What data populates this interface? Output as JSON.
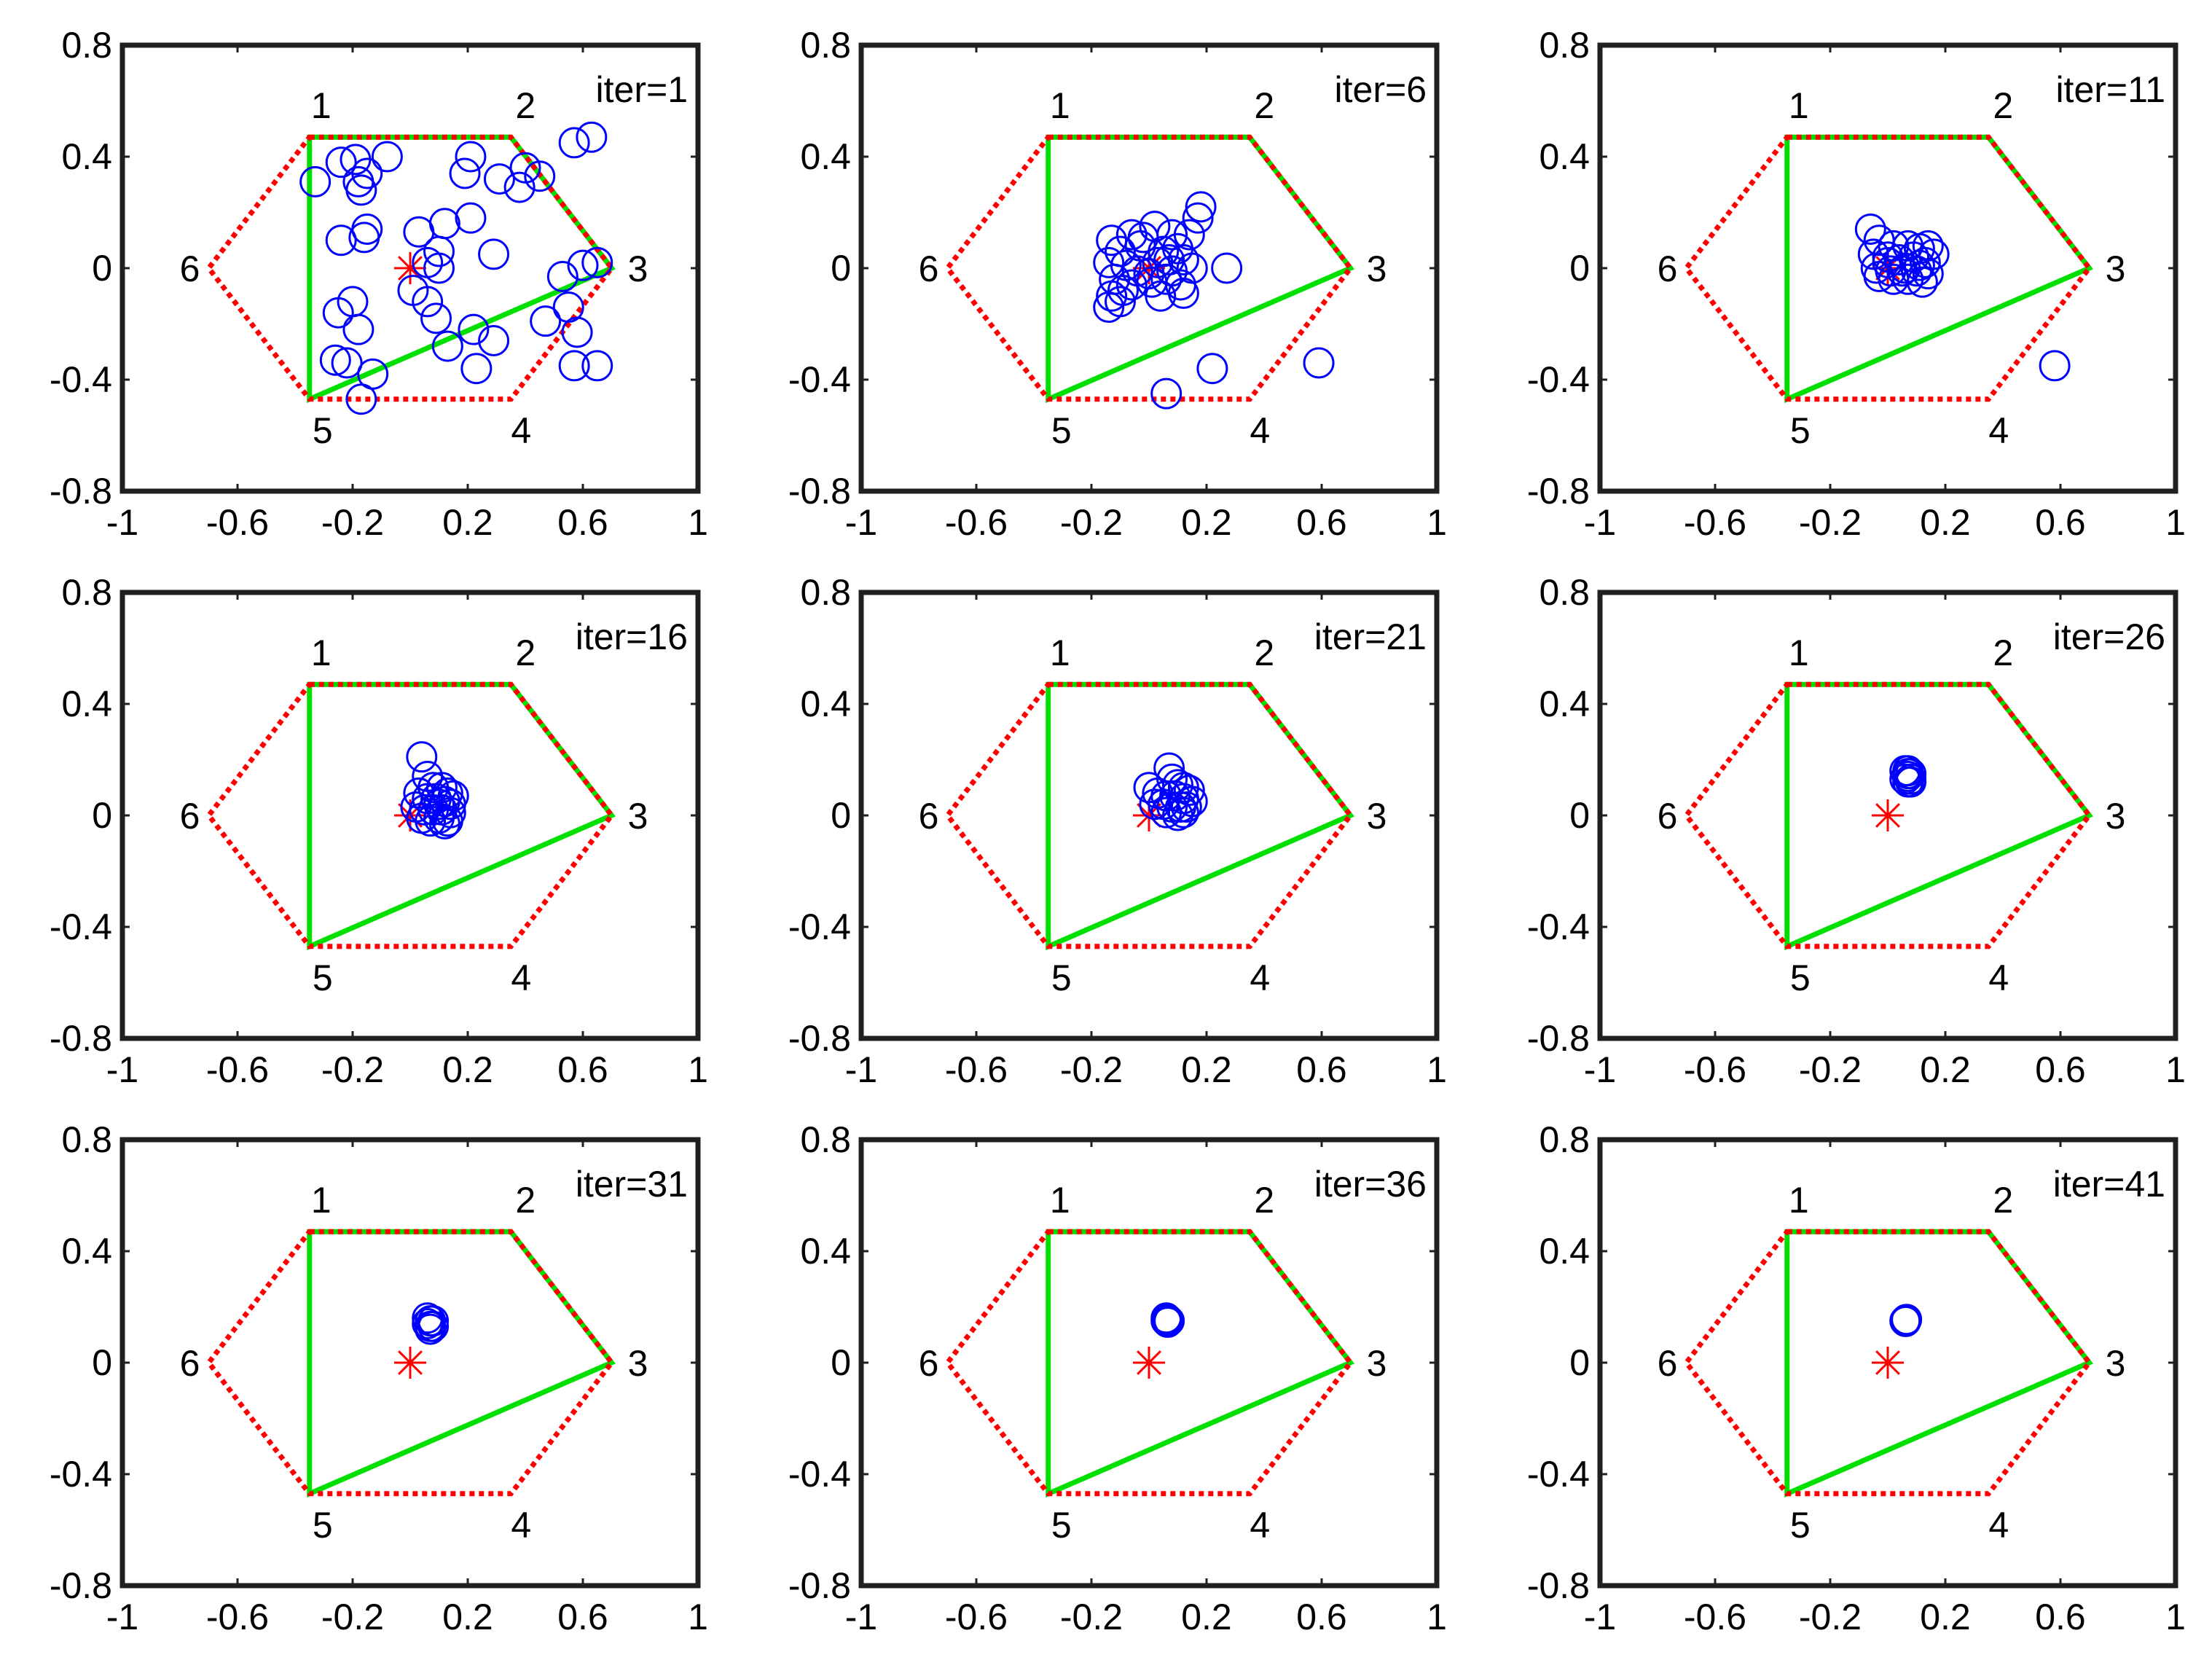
{
  "figure": {
    "colors": {
      "axes": "#202020",
      "hexagon": "#ff0000",
      "polygon": "#00e000",
      "particles": "#0000ff",
      "target": "#ff0000"
    }
  },
  "chart_data": [
    {
      "type": "scatter",
      "title": "iter=1",
      "xlim": [
        -1,
        1
      ],
      "ylim": [
        -0.8,
        0.8
      ],
      "xticks": [
        "-1",
        "-0.6",
        "-0.2",
        "0.2",
        "0.6",
        "1"
      ],
      "yticks": [
        "0.8",
        "0.4",
        "0",
        "-0.4",
        "-0.8"
      ],
      "vertices": [
        {
          "label": "1",
          "x": -0.35,
          "y": 0.47
        },
        {
          "label": "2",
          "x": 0.35,
          "y": 0.47
        },
        {
          "label": "3",
          "x": 0.7,
          "y": 0.0
        },
        {
          "label": "4",
          "x": 0.35,
          "y": -0.47
        },
        {
          "label": "5",
          "x": -0.35,
          "y": -0.47
        },
        {
          "label": "6",
          "x": -0.7,
          "y": 0.0
        }
      ],
      "polygon_vertices": [
        "1",
        "2",
        "3",
        "5"
      ],
      "target": {
        "x": 0.0,
        "y": 0.0
      },
      "particles": [
        [
          -0.33,
          0.31
        ],
        [
          -0.24,
          0.38
        ],
        [
          -0.19,
          0.39
        ],
        [
          -0.15,
          0.34
        ],
        [
          -0.18,
          0.31
        ],
        [
          -0.17,
          0.28
        ],
        [
          -0.08,
          0.4
        ],
        [
          0.21,
          0.4
        ],
        [
          0.57,
          0.45
        ],
        [
          0.63,
          0.47
        ],
        [
          0.4,
          0.36
        ],
        [
          0.45,
          0.33
        ],
        [
          0.38,
          0.29
        ],
        [
          0.19,
          0.34
        ],
        [
          0.31,
          0.32
        ],
        [
          -0.24,
          0.1
        ],
        [
          -0.15,
          0.14
        ],
        [
          -0.16,
          0.11
        ],
        [
          0.03,
          0.13
        ],
        [
          0.12,
          0.16
        ],
        [
          0.21,
          0.18
        ],
        [
          0.29,
          0.05
        ],
        [
          0.1,
          0.06
        ],
        [
          0.06,
          0.02
        ],
        [
          0.1,
          0.0
        ],
        [
          0.53,
          -0.03
        ],
        [
          0.6,
          0.01
        ],
        [
          0.65,
          0.02
        ],
        [
          0.01,
          -0.08
        ],
        [
          0.06,
          -0.12
        ],
        [
          0.09,
          -0.18
        ],
        [
          0.55,
          -0.14
        ],
        [
          -0.25,
          -0.16
        ],
        [
          -0.2,
          -0.12
        ],
        [
          -0.18,
          -0.22
        ],
        [
          0.22,
          -0.22
        ],
        [
          0.29,
          -0.26
        ],
        [
          0.58,
          -0.23
        ],
        [
          -0.26,
          -0.33
        ],
        [
          -0.22,
          -0.34
        ],
        [
          0.13,
          -0.28
        ],
        [
          0.23,
          -0.36
        ],
        [
          0.57,
          -0.35
        ],
        [
          0.65,
          -0.35
        ],
        [
          -0.13,
          -0.38
        ],
        [
          -0.17,
          -0.47
        ],
        [
          0.47,
          -0.19
        ]
      ]
    },
    {
      "type": "scatter",
      "title": "iter=6",
      "xlim": [
        -1,
        1
      ],
      "ylim": [
        -0.8,
        0.8
      ],
      "xticks": [
        "-1",
        "-0.6",
        "-0.2",
        "0.2",
        "0.6",
        "1"
      ],
      "yticks": [
        "0.8",
        "0.4",
        "0",
        "-0.4",
        "-0.8"
      ],
      "vertices": [
        {
          "label": "1",
          "x": -0.35,
          "y": 0.47
        },
        {
          "label": "2",
          "x": 0.35,
          "y": 0.47
        },
        {
          "label": "3",
          "x": 0.7,
          "y": 0.0
        },
        {
          "label": "4",
          "x": 0.35,
          "y": -0.47
        },
        {
          "label": "5",
          "x": -0.35,
          "y": -0.47
        },
        {
          "label": "6",
          "x": -0.7,
          "y": 0.0
        }
      ],
      "polygon_vertices": [
        "1",
        "2",
        "3",
        "5"
      ],
      "target": {
        "x": 0.0,
        "y": 0.0
      },
      "particles": [
        [
          -0.13,
          0.1
        ],
        [
          -0.06,
          0.12
        ],
        [
          0.02,
          0.15
        ],
        [
          0.08,
          0.12
        ],
        [
          0.14,
          0.12
        ],
        [
          0.17,
          0.18
        ],
        [
          0.18,
          0.22
        ],
        [
          -0.1,
          0.06
        ],
        [
          -0.03,
          0.08
        ],
        [
          0.05,
          0.06
        ],
        [
          0.1,
          0.07
        ],
        [
          -0.14,
          0.02
        ],
        [
          -0.08,
          0.01
        ],
        [
          -0.04,
          -0.01
        ],
        [
          0.03,
          0.02
        ],
        [
          0.08,
          -0.01
        ],
        [
          0.12,
          0.03
        ],
        [
          -0.12,
          -0.04
        ],
        [
          -0.06,
          -0.06
        ],
        [
          0.01,
          -0.05
        ],
        [
          0.06,
          -0.04
        ],
        [
          0.11,
          -0.06
        ],
        [
          -0.13,
          -0.1
        ],
        [
          -0.09,
          -0.08
        ],
        [
          0.04,
          -0.1
        ],
        [
          0.12,
          -0.09
        ],
        [
          -0.14,
          -0.14
        ],
        [
          -0.1,
          -0.12
        ],
        [
          0.0,
          -0.02
        ],
        [
          0.07,
          0.03
        ],
        [
          -0.02,
          0.11
        ],
        [
          0.15,
          0.0
        ],
        [
          0.27,
          0.0
        ],
        [
          0.22,
          -0.36
        ],
        [
          0.06,
          -0.45
        ],
        [
          0.59,
          -0.34
        ]
      ]
    },
    {
      "type": "scatter",
      "title": "iter=11",
      "xlim": [
        -1,
        1
      ],
      "ylim": [
        -0.8,
        0.8
      ],
      "xticks": [
        "-1",
        "-0.6",
        "-0.2",
        "0.2",
        "0.6",
        "1"
      ],
      "yticks": [
        "0.8",
        "0.4",
        "0",
        "-0.4",
        "-0.8"
      ],
      "vertices": [
        {
          "label": "1",
          "x": -0.35,
          "y": 0.47
        },
        {
          "label": "2",
          "x": 0.35,
          "y": 0.47
        },
        {
          "label": "3",
          "x": 0.7,
          "y": 0.0
        },
        {
          "label": "4",
          "x": 0.35,
          "y": -0.47
        },
        {
          "label": "5",
          "x": -0.35,
          "y": -0.47
        },
        {
          "label": "6",
          "x": -0.7,
          "y": 0.0
        }
      ],
      "polygon_vertices": [
        "1",
        "2",
        "3",
        "5"
      ],
      "target": {
        "x": 0.0,
        "y": 0.0
      },
      "particles": [
        [
          -0.06,
          0.14
        ],
        [
          -0.03,
          0.1
        ],
        [
          0.02,
          0.08
        ],
        [
          0.07,
          0.08
        ],
        [
          0.11,
          0.07
        ],
        [
          0.14,
          0.08
        ],
        [
          0.16,
          0.05
        ],
        [
          -0.05,
          0.05
        ],
        [
          0.0,
          0.04
        ],
        [
          0.04,
          0.03
        ],
        [
          0.09,
          0.04
        ],
        [
          0.13,
          0.02
        ],
        [
          -0.04,
          0.0
        ],
        [
          0.01,
          -0.01
        ],
        [
          0.05,
          -0.01
        ],
        [
          0.1,
          -0.01
        ],
        [
          0.14,
          -0.02
        ],
        [
          -0.03,
          -0.03
        ],
        [
          0.02,
          -0.04
        ],
        [
          0.07,
          -0.04
        ],
        [
          0.12,
          -0.05
        ],
        [
          0.0,
          0.02
        ],
        [
          0.06,
          0.0
        ],
        [
          0.11,
          0.01
        ],
        [
          0.58,
          -0.35
        ]
      ]
    },
    {
      "type": "scatter",
      "title": "iter=16",
      "xlim": [
        -1,
        1
      ],
      "ylim": [
        -0.8,
        0.8
      ],
      "xticks": [
        "-1",
        "-0.6",
        "-0.2",
        "0.2",
        "0.6",
        "1"
      ],
      "yticks": [
        "0.8",
        "0.4",
        "0",
        "-0.4",
        "-0.8"
      ],
      "vertices": [
        {
          "label": "1",
          "x": -0.35,
          "y": 0.47
        },
        {
          "label": "2",
          "x": 0.35,
          "y": 0.47
        },
        {
          "label": "3",
          "x": 0.7,
          "y": 0.0
        },
        {
          "label": "4",
          "x": 0.35,
          "y": -0.47
        },
        {
          "label": "5",
          "x": -0.35,
          "y": -0.47
        },
        {
          "label": "6",
          "x": -0.7,
          "y": 0.0
        }
      ],
      "polygon_vertices": [
        "1",
        "2",
        "3",
        "5"
      ],
      "target": {
        "x": 0.0,
        "y": 0.0
      },
      "particles": [
        [
          0.04,
          0.21
        ],
        [
          0.06,
          0.14
        ],
        [
          0.08,
          0.1
        ],
        [
          0.11,
          0.1
        ],
        [
          0.13,
          0.08
        ],
        [
          0.15,
          0.07
        ],
        [
          0.03,
          0.08
        ],
        [
          0.06,
          0.06
        ],
        [
          0.09,
          0.06
        ],
        [
          0.12,
          0.05
        ],
        [
          0.14,
          0.04
        ],
        [
          0.02,
          0.03
        ],
        [
          0.05,
          0.02
        ],
        [
          0.08,
          0.02
        ],
        [
          0.11,
          0.02
        ],
        [
          0.14,
          0.01
        ],
        [
          0.04,
          -0.01
        ],
        [
          0.07,
          -0.02
        ],
        [
          0.1,
          -0.01
        ],
        [
          0.13,
          -0.02
        ],
        [
          0.12,
          -0.03
        ],
        [
          0.1,
          0.04
        ]
      ]
    },
    {
      "type": "scatter",
      "title": "iter=21",
      "xlim": [
        -1,
        1
      ],
      "ylim": [
        -0.8,
        0.8
      ],
      "xticks": [
        "-1",
        "-0.6",
        "-0.2",
        "0.2",
        "0.6",
        "1"
      ],
      "yticks": [
        "0.8",
        "0.4",
        "0",
        "-0.4",
        "-0.8"
      ],
      "vertices": [
        {
          "label": "1",
          "x": -0.35,
          "y": 0.47
        },
        {
          "label": "2",
          "x": 0.35,
          "y": 0.47
        },
        {
          "label": "3",
          "x": 0.7,
          "y": 0.0
        },
        {
          "label": "4",
          "x": 0.35,
          "y": -0.47
        },
        {
          "label": "5",
          "x": -0.35,
          "y": -0.47
        },
        {
          "label": "6",
          "x": -0.7,
          "y": 0.0
        }
      ],
      "polygon_vertices": [
        "1",
        "2",
        "3",
        "5"
      ],
      "target": {
        "x": 0.0,
        "y": 0.0
      },
      "particles": [
        [
          0.07,
          0.17
        ],
        [
          0.08,
          0.13
        ],
        [
          0.1,
          0.11
        ],
        [
          0.12,
          0.1
        ],
        [
          0.14,
          0.09
        ],
        [
          0.0,
          0.1
        ],
        [
          0.03,
          0.08
        ],
        [
          0.06,
          0.07
        ],
        [
          0.09,
          0.07
        ],
        [
          0.12,
          0.06
        ],
        [
          0.15,
          0.05
        ],
        [
          0.02,
          0.04
        ],
        [
          0.05,
          0.04
        ],
        [
          0.08,
          0.03
        ],
        [
          0.11,
          0.03
        ],
        [
          0.13,
          0.03
        ],
        [
          0.06,
          0.01
        ],
        [
          0.1,
          0.0
        ],
        [
          0.12,
          0.01
        ]
      ]
    },
    {
      "type": "scatter",
      "title": "iter=26",
      "xlim": [
        -1,
        1
      ],
      "ylim": [
        -0.8,
        0.8
      ],
      "xticks": [
        "-1",
        "-0.6",
        "-0.2",
        "0.2",
        "0.6",
        "1"
      ],
      "yticks": [
        "0.8",
        "0.4",
        "0",
        "-0.4",
        "-0.8"
      ],
      "vertices": [
        {
          "label": "1",
          "x": -0.35,
          "y": 0.47
        },
        {
          "label": "2",
          "x": 0.35,
          "y": 0.47
        },
        {
          "label": "3",
          "x": 0.7,
          "y": 0.0
        },
        {
          "label": "4",
          "x": 0.35,
          "y": -0.47
        },
        {
          "label": "5",
          "x": -0.35,
          "y": -0.47
        },
        {
          "label": "6",
          "x": -0.7,
          "y": 0.0
        }
      ],
      "polygon_vertices": [
        "1",
        "2",
        "3",
        "5"
      ],
      "target": {
        "x": 0.0,
        "y": 0.0
      },
      "particles": [
        [
          0.06,
          0.16
        ],
        [
          0.07,
          0.15
        ],
        [
          0.08,
          0.15
        ],
        [
          0.06,
          0.13
        ],
        [
          0.07,
          0.14
        ],
        [
          0.08,
          0.13
        ],
        [
          0.07,
          0.12
        ],
        [
          0.08,
          0.12
        ],
        [
          0.07,
          0.16
        ]
      ]
    },
    {
      "type": "scatter",
      "title": "iter=31",
      "xlim": [
        -1,
        1
      ],
      "ylim": [
        -0.8,
        0.8
      ],
      "xticks": [
        "-1",
        "-0.6",
        "-0.2",
        "0.2",
        "0.6",
        "1"
      ],
      "yticks": [
        "0.8",
        "0.4",
        "0",
        "-0.4",
        "-0.8"
      ],
      "vertices": [
        {
          "label": "1",
          "x": -0.35,
          "y": 0.47
        },
        {
          "label": "2",
          "x": 0.35,
          "y": 0.47
        },
        {
          "label": "3",
          "x": 0.7,
          "y": 0.0
        },
        {
          "label": "4",
          "x": 0.35,
          "y": -0.47
        },
        {
          "label": "5",
          "x": -0.35,
          "y": -0.47
        },
        {
          "label": "6",
          "x": -0.7,
          "y": 0.0
        }
      ],
      "polygon_vertices": [
        "1",
        "2",
        "3",
        "5"
      ],
      "target": {
        "x": 0.0,
        "y": 0.0
      },
      "particles": [
        [
          0.06,
          0.16
        ],
        [
          0.07,
          0.15
        ],
        [
          0.08,
          0.15
        ],
        [
          0.07,
          0.13
        ],
        [
          0.08,
          0.13
        ],
        [
          0.06,
          0.14
        ],
        [
          0.07,
          0.12
        ]
      ]
    },
    {
      "type": "scatter",
      "title": "iter=36",
      "xlim": [
        -1,
        1
      ],
      "ylim": [
        -0.8,
        0.8
      ],
      "xticks": [
        "-1",
        "-0.6",
        "-0.2",
        "0.2",
        "0.6",
        "1"
      ],
      "yticks": [
        "0.8",
        "0.4",
        "0",
        "-0.4",
        "-0.8"
      ],
      "vertices": [
        {
          "label": "1",
          "x": -0.35,
          "y": 0.47
        },
        {
          "label": "2",
          "x": 0.35,
          "y": 0.47
        },
        {
          "label": "3",
          "x": 0.7,
          "y": 0.0
        },
        {
          "label": "4",
          "x": 0.35,
          "y": -0.47
        },
        {
          "label": "5",
          "x": -0.35,
          "y": -0.47
        },
        {
          "label": "6",
          "x": -0.7,
          "y": 0.0
        }
      ],
      "polygon_vertices": [
        "1",
        "2",
        "3",
        "5"
      ],
      "target": {
        "x": 0.0,
        "y": 0.0
      },
      "particles": [
        [
          0.06,
          0.15
        ],
        [
          0.065,
          0.155
        ],
        [
          0.07,
          0.15
        ],
        [
          0.065,
          0.145
        ],
        [
          0.06,
          0.16
        ]
      ]
    },
    {
      "type": "scatter",
      "title": "iter=41",
      "xlim": [
        -1,
        1
      ],
      "ylim": [
        -0.8,
        0.8
      ],
      "xticks": [
        "-1",
        "-0.6",
        "-0.2",
        "0.2",
        "0.6",
        "1"
      ],
      "yticks": [
        "0.8",
        "0.4",
        "0",
        "-0.4",
        "-0.8"
      ],
      "vertices": [
        {
          "label": "1",
          "x": -0.35,
          "y": 0.47
        },
        {
          "label": "2",
          "x": 0.35,
          "y": 0.47
        },
        {
          "label": "3",
          "x": 0.7,
          "y": 0.0
        },
        {
          "label": "4",
          "x": 0.35,
          "y": -0.47
        },
        {
          "label": "5",
          "x": -0.35,
          "y": -0.47
        },
        {
          "label": "6",
          "x": -0.7,
          "y": 0.0
        }
      ],
      "polygon_vertices": [
        "1",
        "2",
        "3",
        "5"
      ],
      "target": {
        "x": 0.0,
        "y": 0.0
      },
      "particles": [
        [
          0.06,
          0.15
        ],
        [
          0.065,
          0.155
        ],
        [
          0.062,
          0.148
        ]
      ]
    }
  ]
}
